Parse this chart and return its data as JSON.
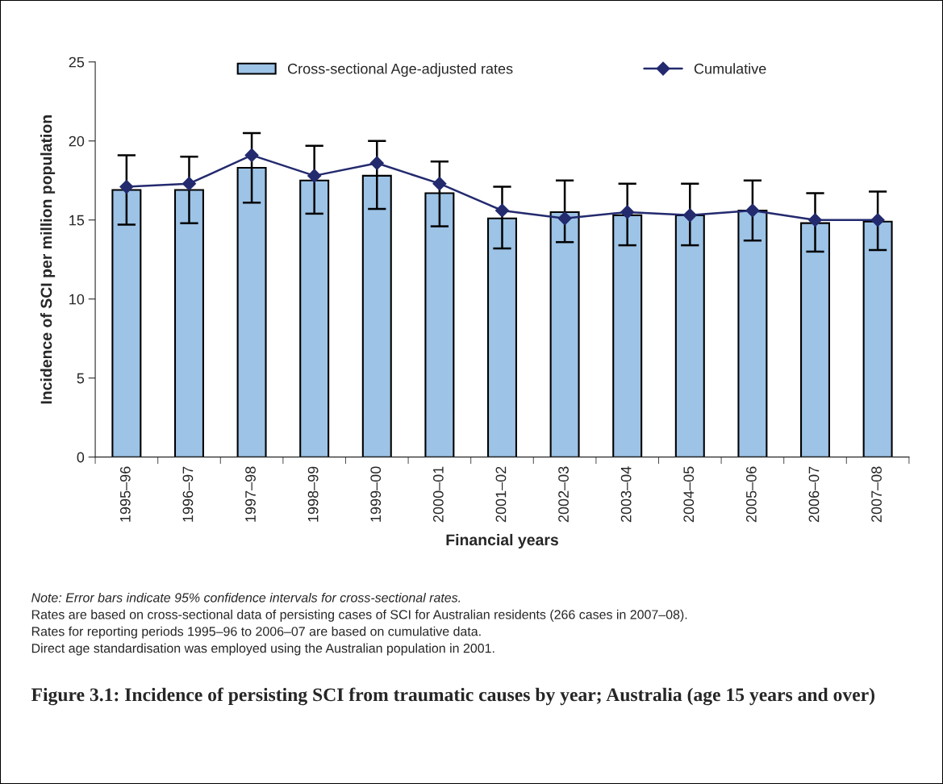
{
  "chart_data": {
    "type": "bar",
    "title": "Figure 3.1: Incidence of persisting SCI from traumatic causes by year; Australia (age 15 years and over)",
    "xlabel": "Financial years",
    "ylabel": "Incidence of SCI per million population",
    "categories": [
      "1995–96",
      "1996–97",
      "1997–98",
      "1998–99",
      "1999–00",
      "2000–01",
      "2001–02",
      "2002–03",
      "2003–04",
      "2004–05",
      "2005–06",
      "2006–07",
      "2007–08"
    ],
    "series": [
      {
        "name": "Cross-sectional Age-adjusted rates",
        "color": "#9dc3e6",
        "values": [
          16.9,
          16.9,
          18.3,
          17.5,
          17.8,
          16.7,
          15.1,
          15.5,
          15.3,
          15.3,
          15.6,
          14.8,
          14.9
        ],
        "errors": [
          [
            14.7,
            19.1
          ],
          [
            14.8,
            19.0
          ],
          [
            16.1,
            20.5
          ],
          [
            15.4,
            19.7
          ],
          [
            15.7,
            20.0
          ],
          [
            14.6,
            18.7
          ],
          [
            13.2,
            17.1
          ],
          [
            13.6,
            17.5
          ],
          [
            13.4,
            17.3
          ],
          [
            13.4,
            17.3
          ],
          [
            13.7,
            17.5
          ],
          [
            13.0,
            16.7
          ],
          [
            13.1,
            16.8
          ]
        ]
      },
      {
        "name": "Cumulative",
        "type": "line",
        "color": "#232a6e",
        "marker": "diamond",
        "values": [
          17.1,
          17.3,
          19.1,
          17.8,
          18.6,
          17.3,
          15.6,
          15.1,
          15.5,
          15.3,
          15.6,
          15.0,
          15.0
        ]
      }
    ],
    "ylim": [
      0,
      25
    ],
    "yticks": [
      0,
      5,
      10,
      15,
      20,
      25
    ],
    "grid": false,
    "legend": "top",
    "annotations": [
      "Note: Error bars indicate 95% confidence intervals for cross-sectional rates.",
      "Rates are based on cross-sectional data of persisting cases of SCI for Australian residents (266 cases in 2007–08).",
      "Rates for reporting periods 1995–96 to 2006–07 are based on cumulative data.",
      "Direct age standardisation was employed using the Australian population in 2001."
    ]
  }
}
